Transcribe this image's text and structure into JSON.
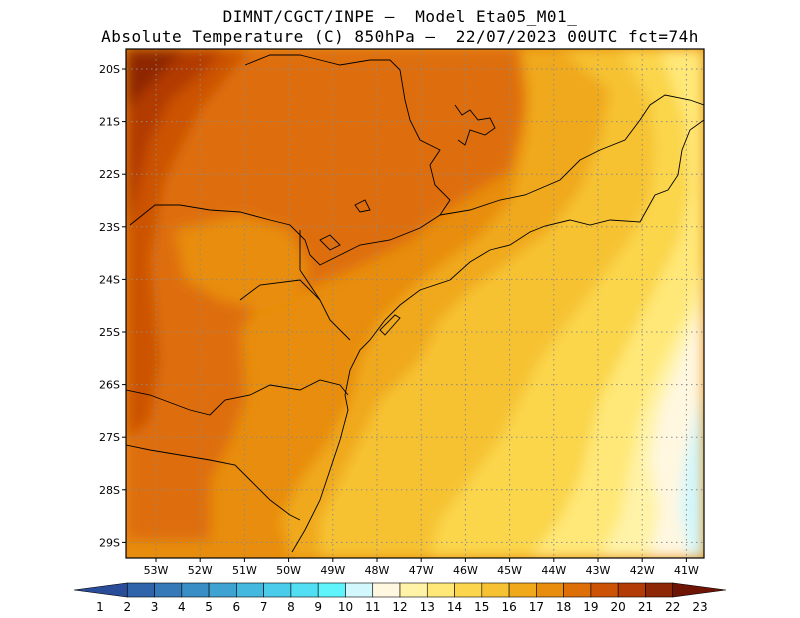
{
  "header": {
    "line1": "DIMNT/CGCT/INPE –  Model Eta05_M01_",
    "line2": "Absolute Temperature (C) 850hPa –  22/07/2023 00UTC fct=74h"
  },
  "map": {
    "lat_ticks": [
      "20S",
      "21S",
      "22S",
      "23S",
      "24S",
      "25S",
      "26S",
      "27S",
      "28S",
      "29S"
    ],
    "lon_ticks": [
      "53W",
      "52W",
      "51W",
      "50W",
      "49W",
      "48W",
      "47W",
      "46W",
      "45W",
      "44W",
      "43W",
      "42W",
      "41W"
    ],
    "grid": "dotted"
  },
  "colorbar": {
    "labels": [
      "1",
      "2",
      "3",
      "4",
      "5",
      "6",
      "7",
      "8",
      "9",
      "10",
      "11",
      "12",
      "13",
      "14",
      "15",
      "16",
      "17",
      "18",
      "19",
      "20",
      "21",
      "22",
      "23"
    ],
    "colors": [
      "#2a4d9a",
      "#2f64aa",
      "#3579b8",
      "#3a8ec6",
      "#3fa3d2",
      "#44b8de",
      "#4accea",
      "#52dff3",
      "#5ff4fb",
      "#d2f7fd",
      "#fff7e0",
      "#fff3a8",
      "#ffe878",
      "#fbd64c",
      "#f6c233",
      "#f0a91a",
      "#e88d0d",
      "#de6e07",
      "#cc5206",
      "#b23b06",
      "#8e2706",
      "#6e1404"
    ]
  }
}
